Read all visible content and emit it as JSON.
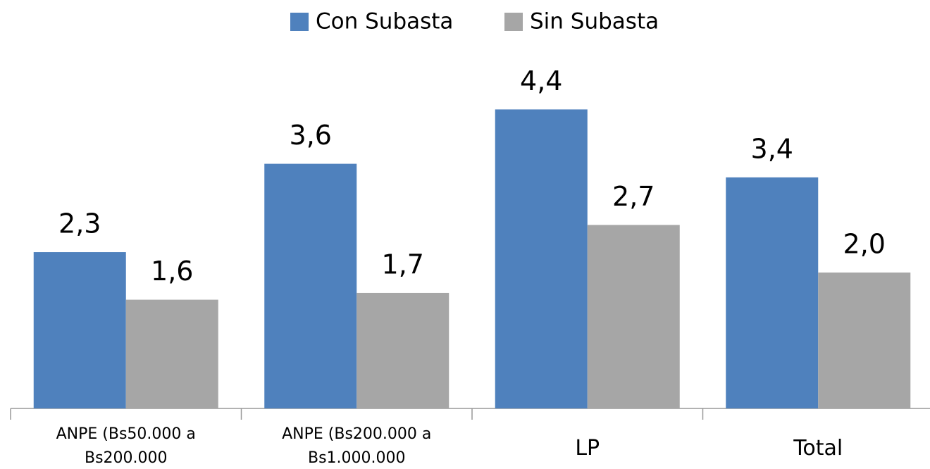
{
  "chart_data": {
    "type": "bar",
    "categories": [
      "ANPE (Bs50.000 a Bs200.000",
      "ANPE (Bs200.000 a Bs1.000.000",
      "LP",
      "Total"
    ],
    "series": [
      {
        "name": "Con Subasta",
        "color": "#4f81bd",
        "values": [
          2.3,
          3.6,
          4.4,
          3.4
        ],
        "value_labels": [
          "2,3",
          "3,6",
          "4,4",
          "3,4"
        ]
      },
      {
        "name": "Sin Subasta",
        "color": "#a6a6a6",
        "values": [
          1.6,
          1.7,
          2.7,
          2.0
        ],
        "value_labels": [
          "1,6",
          "1,7",
          "2,7",
          "2,0"
        ]
      }
    ],
    "ylim": [
      0,
      6
    ]
  }
}
